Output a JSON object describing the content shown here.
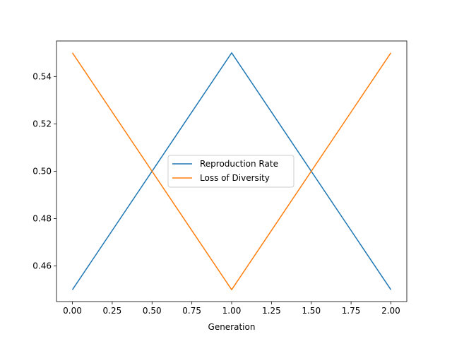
{
  "chart_data": {
    "type": "line",
    "title": "",
    "xlabel": "Generation",
    "ylabel": "",
    "x": [
      0,
      1,
      2
    ],
    "xlim": [
      -0.1,
      2.1
    ],
    "ylim": [
      0.445,
      0.555
    ],
    "xticks": [
      "0.00",
      "0.25",
      "0.50",
      "0.75",
      "1.00",
      "1.25",
      "1.50",
      "1.75",
      "2.00"
    ],
    "yticks": [
      "0.46",
      "0.48",
      "0.50",
      "0.52",
      "0.54"
    ],
    "grid": false,
    "legend_position": "center",
    "series": [
      {
        "name": "Reproduction Rate",
        "color": "#1f77b4",
        "values": [
          0.45,
          0.55,
          0.45
        ]
      },
      {
        "name": "Loss of Diversity",
        "color": "#ff7f0e",
        "values": [
          0.55,
          0.45,
          0.55
        ]
      }
    ]
  }
}
